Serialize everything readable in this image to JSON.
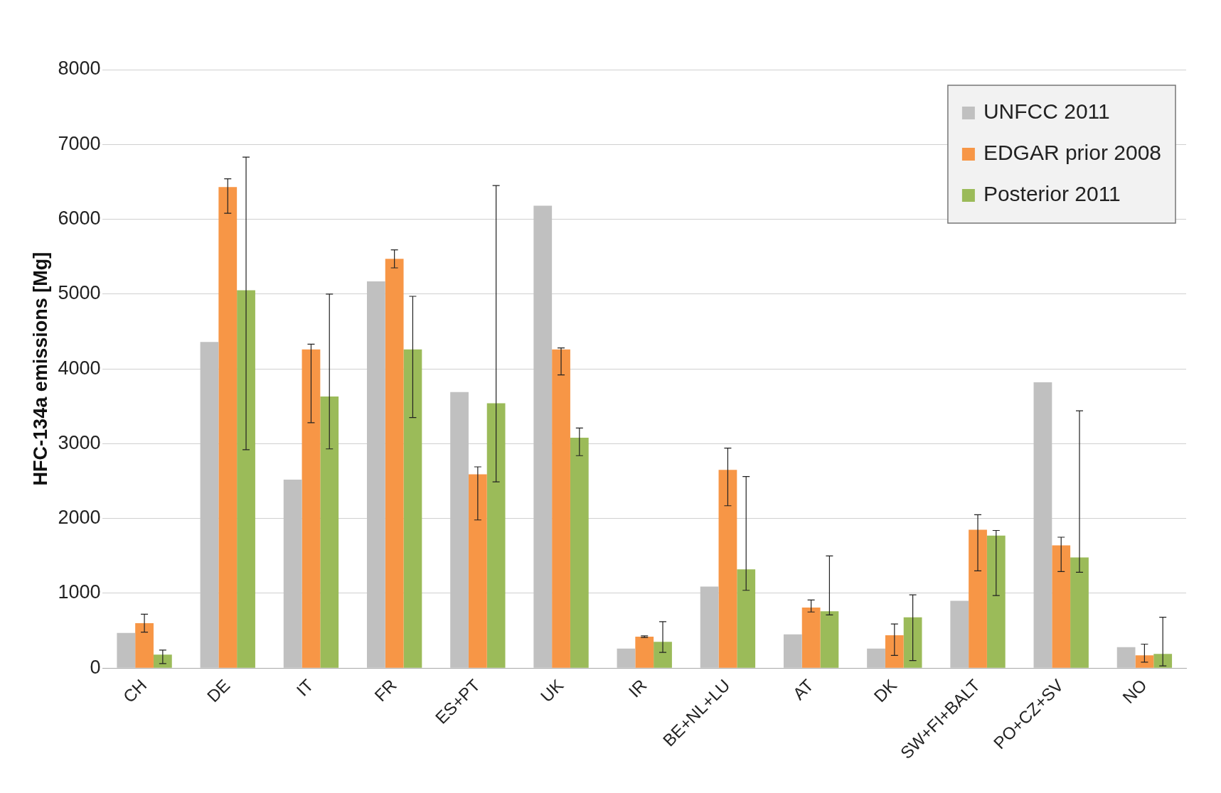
{
  "chart_data": {
    "type": "bar",
    "ylabel": "HFC-134a emissions [Mg]",
    "categories": [
      "CH",
      "DE",
      "IT",
      "FR",
      "ES+PT",
      "UK",
      "IR",
      "BE+NL+LU",
      "AT",
      "DK",
      "SW+FI+BALT",
      "PO+CZ+SV",
      "NO"
    ],
    "series": [
      {
        "name": "UNFCC 2011",
        "color": "#c0c0c0",
        "values": [
          470,
          4360,
          2520,
          5170,
          3690,
          6180,
          260,
          1090,
          450,
          260,
          900,
          3820,
          280
        ]
      },
      {
        "name": "EDGAR prior 2008",
        "color": "#f79646",
        "values": [
          600,
          6430,
          4260,
          5470,
          2590,
          4260,
          420,
          2650,
          810,
          440,
          1850,
          1640,
          170
        ],
        "errors": [
          [
            480,
            720
          ],
          [
            6080,
            6540
          ],
          [
            3280,
            4330
          ],
          [
            5350,
            5590
          ],
          [
            1980,
            2690
          ],
          [
            3920,
            4280
          ],
          [
            410,
            430
          ],
          [
            2170,
            2940
          ],
          [
            750,
            910
          ],
          [
            170,
            590
          ],
          [
            1300,
            2050
          ],
          [
            1290,
            1750
          ],
          [
            80,
            320
          ]
        ]
      },
      {
        "name": "Posterior 2011",
        "color": "#9bbb59",
        "values": [
          180,
          5050,
          3630,
          4260,
          3540,
          3080,
          350,
          1320,
          760,
          680,
          1770,
          1480,
          190
        ],
        "errors": [
          [
            60,
            240
          ],
          [
            2920,
            6830
          ],
          [
            2930,
            5000
          ],
          [
            3350,
            4970
          ],
          [
            2490,
            6450
          ],
          [
            2840,
            3210
          ],
          [
            210,
            620
          ],
          [
            1040,
            2560
          ],
          [
            710,
            1500
          ],
          [
            100,
            980
          ],
          [
            970,
            1840
          ],
          [
            1280,
            3440
          ],
          [
            30,
            680
          ]
        ]
      }
    ],
    "ylim": [
      0,
      8000
    ],
    "yticks": [
      0,
      1000,
      2000,
      3000,
      4000,
      5000,
      6000,
      7000,
      8000
    ],
    "grid": "y",
    "legend": "top right"
  }
}
